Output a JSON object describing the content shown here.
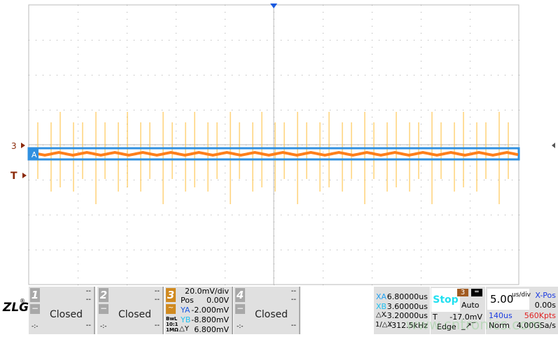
{
  "logo": "ZLG",
  "markers": {
    "channel3": "3",
    "trigger": "T",
    "cursor": "A"
  },
  "channels": [
    {
      "num": "1",
      "v1": "--",
      "v2": "--",
      "status": "Closed",
      "bl": "-:-",
      "br": "--"
    },
    {
      "num": "2",
      "v1": "--",
      "v2": "--",
      "status": "Closed",
      "bl": "-:-",
      "br": "--"
    },
    {
      "num": "4",
      "v1": "--",
      "v2": "--",
      "status": "Closed",
      "bl": "-:-",
      "br": "--"
    }
  ],
  "ch3": {
    "num": "3",
    "scale": "20.0mV/div",
    "pos_label": "Pos",
    "pos": "0.00V",
    "bw": "BwL",
    "probe": "10:1",
    "imp": "1MΩ",
    "ya_label": "YA",
    "ya": "-2.000mV",
    "yb_label": "YB",
    "yb": "-8.800mV",
    "dy_label": "△Y",
    "dy": "6.800mV"
  },
  "cursors": {
    "xa_label": "XA",
    "xa": "6.80000us",
    "xb_label": "XB",
    "xb": "3.60000us",
    "dx_label": "△X",
    "dx": "-3.20000us",
    "inv_label": "1/△X",
    "inv": "-312.5kHz"
  },
  "trigger": {
    "state": "Stop",
    "source": "3",
    "mode": "Auto",
    "t_label": "T",
    "level": "-17.0mV",
    "type": "Edge"
  },
  "timebase": {
    "value": "5.00",
    "unit": "us/div",
    "xpos_label": "X-Pos",
    "xpos": "0.00s",
    "window": "140us",
    "points": "560Kpts",
    "acq": "Norm",
    "rate": "4.00GSa/s"
  },
  "watermark": "www.cntronics.com",
  "colors": {
    "trace": "#ff7f1a",
    "spike": "#ffc040",
    "cursor": "#3090e0",
    "marker": "#8b2a0a"
  }
}
